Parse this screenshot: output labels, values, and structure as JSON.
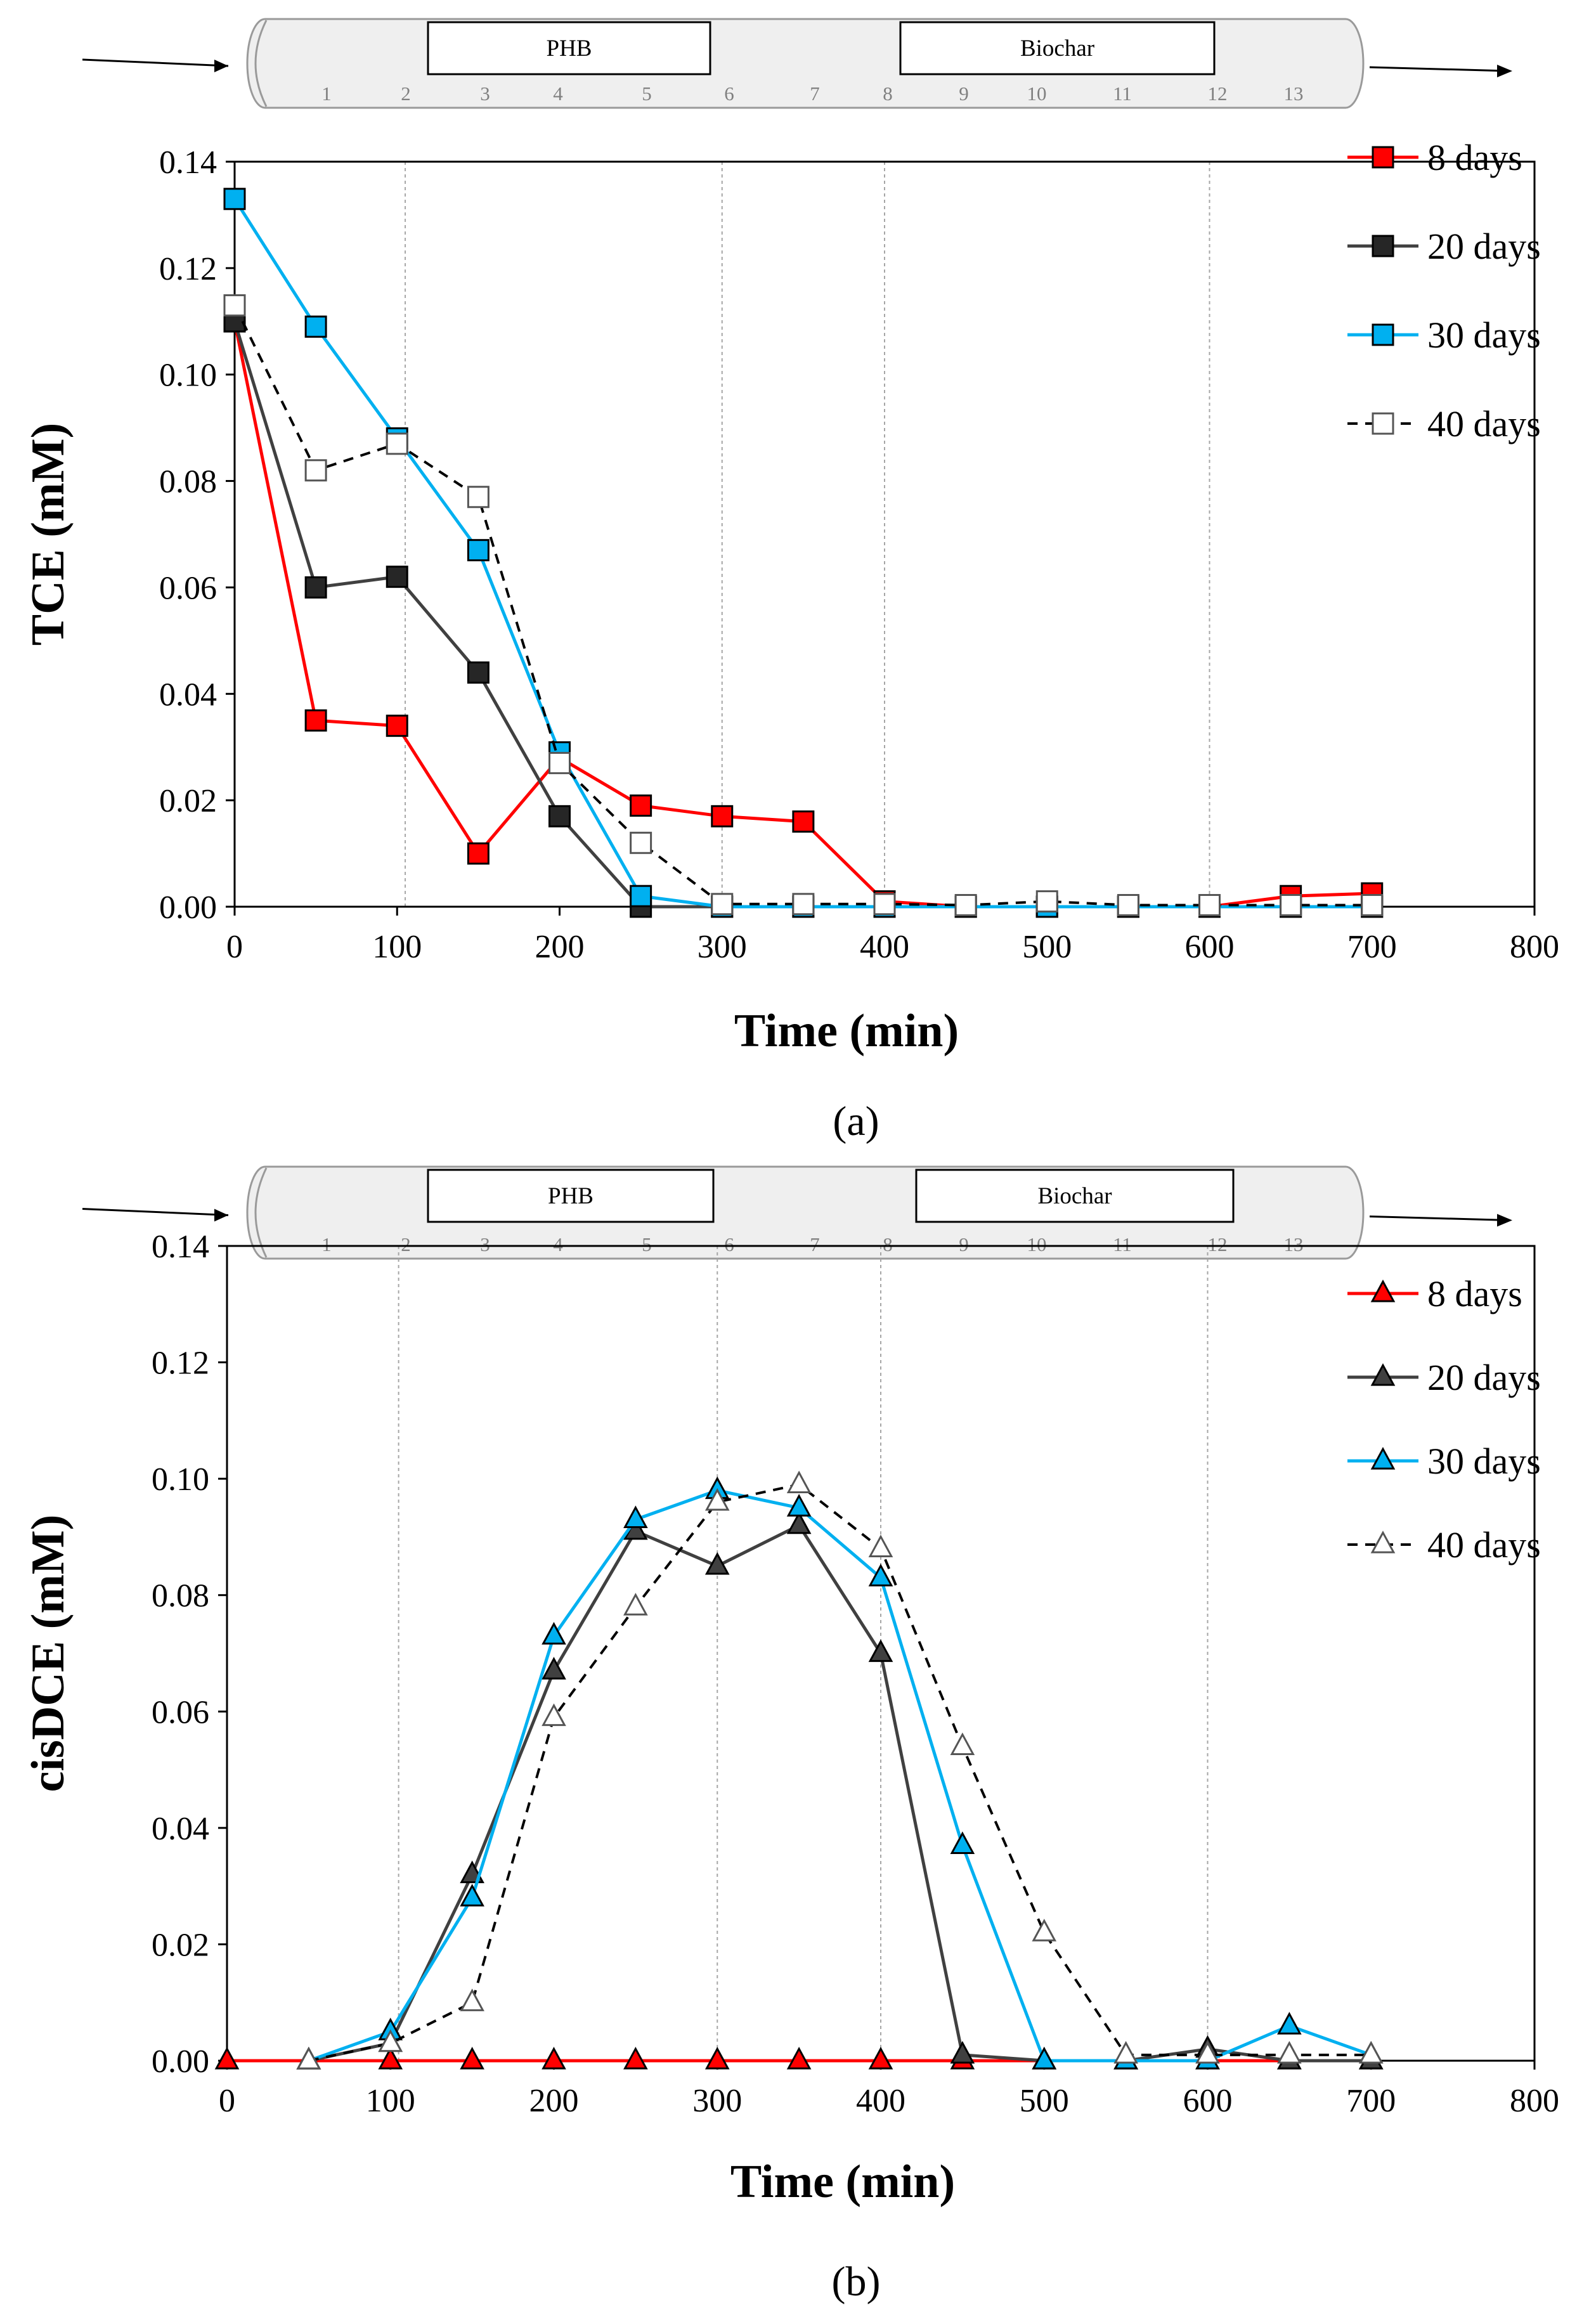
{
  "figure": {
    "panel_labels": [
      "(a)",
      "(b)"
    ]
  },
  "column_schematic": {
    "materials": [
      "PHB",
      "Biochar"
    ],
    "ports": [
      "1",
      "2",
      "3",
      "4",
      "5",
      "6",
      "7",
      "8",
      "9",
      "10",
      "11",
      "12",
      "13"
    ]
  },
  "colors": {
    "8 days": "#ff0000",
    "20 days": "#404040",
    "30 days": "#00b0f0",
    "40 days": "#000000",
    "frame": "#000000",
    "column_fill": "#efefef",
    "guide_line": "#a6a6a6"
  },
  "chart_data": [
    {
      "type": "line",
      "panel": "(a)",
      "xlabel": "Time (min)",
      "ylabel": "TCE (mM)",
      "xlim": [
        0,
        800
      ],
      "ylim": [
        0,
        0.14
      ],
      "xticks": [
        "0",
        "100",
        "200",
        "300",
        "400",
        "500",
        "600",
        "700",
        "800"
      ],
      "yticks": [
        "0.00",
        "0.02",
        "0.04",
        "0.06",
        "0.08",
        "0.10",
        "0.12",
        "0.14"
      ],
      "grid": false,
      "vertical_guides_x": [
        105,
        300,
        400,
        600
      ],
      "legend": "top-right",
      "marker": "square",
      "x": [
        0,
        50,
        100,
        150,
        200,
        250,
        300,
        350,
        400,
        450,
        500,
        550,
        600,
        650,
        700
      ],
      "series": [
        {
          "name": "8 days",
          "line": "solid",
          "marker_fill": "#ff0000",
          "values": [
            0.11,
            0.035,
            0.034,
            0.01,
            0.028,
            0.019,
            0.017,
            0.016,
            0.001,
            0.0,
            0.0,
            0.0,
            0.0,
            0.002,
            0.0025
          ]
        },
        {
          "name": "20 days",
          "line": "solid",
          "marker_fill": "#262626",
          "values": [
            0.11,
            0.06,
            0.062,
            0.044,
            0.017,
            0.0,
            0.0,
            0.0,
            0.0,
            0.0,
            0.0,
            0.0,
            0.0,
            0.0,
            0.0
          ]
        },
        {
          "name": "30 days",
          "line": "solid",
          "marker_fill": "#00b0f0",
          "values": [
            0.133,
            0.109,
            0.088,
            0.067,
            0.029,
            0.002,
            0.0,
            0.0,
            0.0,
            0.0,
            0.0,
            0.0,
            0.0,
            0.0,
            0.0
          ]
        },
        {
          "name": "40 days",
          "line": "dashed",
          "marker_fill": "#ffffff",
          "values": [
            0.113,
            0.082,
            0.087,
            0.077,
            0.027,
            0.012,
            0.0005,
            0.0005,
            0.0005,
            0.0003,
            0.001,
            0.0003,
            0.0003,
            0.0003,
            0.0003
          ]
        }
      ]
    },
    {
      "type": "line",
      "panel": "(b)",
      "xlabel": "Time (min)",
      "ylabel": "cisDCE (mM)",
      "xlim": [
        0,
        800
      ],
      "ylim": [
        0,
        0.14
      ],
      "xticks": [
        "0",
        "100",
        "200",
        "300",
        "400",
        "500",
        "600",
        "700",
        "800"
      ],
      "yticks": [
        "0.00",
        "0.02",
        "0.04",
        "0.06",
        "0.08",
        "0.10",
        "0.12",
        "0.14"
      ],
      "grid": false,
      "vertical_guides_x": [
        105,
        300,
        400,
        600
      ],
      "legend": "top-right",
      "marker": "triangle",
      "series": [
        {
          "name": "8 days",
          "line": "solid",
          "marker_fill": "#ff0000",
          "x": [
            0,
            50,
            100,
            150,
            200,
            250,
            300,
            350,
            400,
            450,
            500,
            550,
            600,
            650,
            700
          ],
          "values": [
            0,
            0,
            0,
            0,
            0,
            0,
            0,
            0,
            0,
            0,
            0,
            0,
            0,
            0,
            0
          ]
        },
        {
          "name": "20 days",
          "line": "solid",
          "marker_fill": "#404040",
          "x": [
            50,
            100,
            150,
            200,
            250,
            300,
            350,
            400,
            450,
            500,
            550,
            600,
            650,
            700
          ],
          "values": [
            0.0,
            0.003,
            0.032,
            0.067,
            0.091,
            0.085,
            0.092,
            0.07,
            0.001,
            0.0,
            0.0,
            0.002,
            0.0,
            0.0
          ]
        },
        {
          "name": "30 days",
          "line": "solid",
          "marker_fill": "#00b0f0",
          "x": [
            50,
            100,
            150,
            200,
            250,
            300,
            350,
            400,
            450,
            500,
            550,
            600,
            650,
            700
          ],
          "values": [
            0.0,
            0.005,
            0.028,
            0.073,
            0.093,
            0.098,
            0.095,
            0.083,
            0.037,
            0.0,
            0.0,
            0.0,
            0.006,
            0.001
          ]
        },
        {
          "name": "40 days",
          "line": "dashed",
          "marker_fill": "#ffffff",
          "x": [
            50,
            100,
            150,
            200,
            250,
            300,
            350,
            400,
            450,
            500,
            550,
            600,
            650,
            700
          ],
          "values": [
            0.0,
            0.003,
            0.01,
            0.059,
            0.078,
            0.096,
            0.099,
            0.088,
            0.054,
            0.022,
            0.001,
            0.001,
            0.001,
            0.001
          ]
        }
      ]
    }
  ]
}
